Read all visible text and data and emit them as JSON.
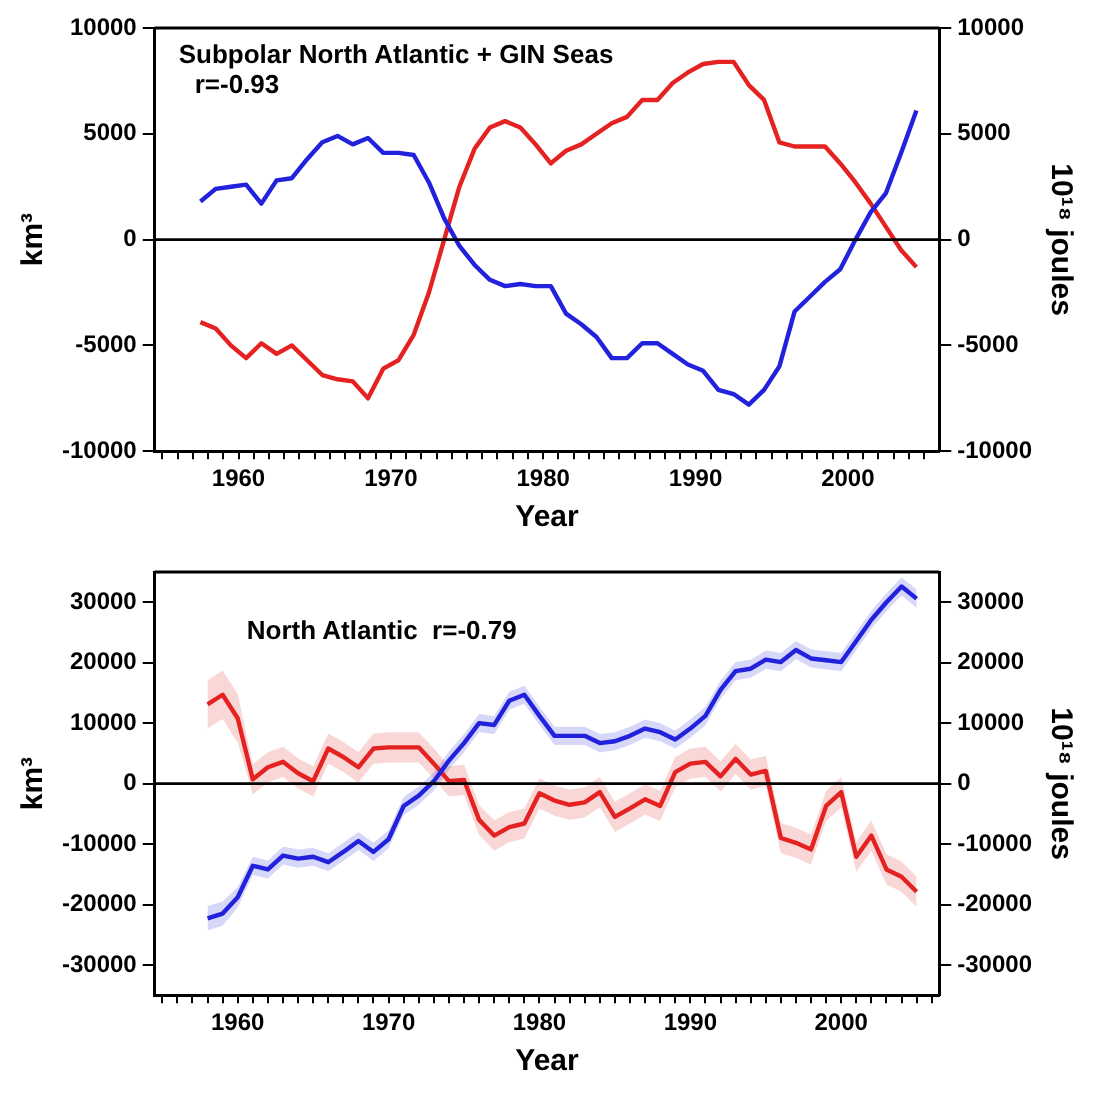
{
  "chart_data": [
    {
      "type": "line",
      "ylabel": "km³",
      "y2label": "10¹⁸ joules",
      "xlabel": "Year",
      "annotations": [
        "Subpolar North Atlantic + GIN Seas",
        "r=-0.93"
      ],
      "xlim": [
        1954.5,
        2006
      ],
      "ylim": [
        -10000,
        10000
      ],
      "y2lim": [
        -10000,
        10000
      ],
      "xticks": [
        {
          "value": 1955,
          "label": null
        },
        {
          "value": 1956,
          "label": null
        },
        {
          "value": 1957,
          "label": null
        },
        {
          "value": 1958,
          "label": null
        },
        {
          "value": 1959,
          "label": null
        },
        1960,
        {
          "value": 1961,
          "label": null
        },
        {
          "value": 1962,
          "label": null
        },
        {
          "value": 1963,
          "label": null
        },
        {
          "value": 1964,
          "label": null
        },
        {
          "value": 1965,
          "label": null
        },
        {
          "value": 1966,
          "label": null
        },
        {
          "value": 1967,
          "label": null
        },
        {
          "value": 1968,
          "label": null
        },
        {
          "value": 1969,
          "label": null
        },
        1970,
        {
          "value": 1971,
          "label": null
        },
        {
          "value": 1972,
          "label": null
        },
        {
          "value": 1973,
          "label": null
        },
        {
          "value": 1974,
          "label": null
        },
        {
          "value": 1975,
          "label": null
        },
        {
          "value": 1976,
          "label": null
        },
        {
          "value": 1977,
          "label": null
        },
        {
          "value": 1978,
          "label": null
        },
        {
          "value": 1979,
          "label": null
        },
        1980,
        {
          "value": 1981,
          "label": null
        },
        {
          "value": 1982,
          "label": null
        },
        {
          "value": 1983,
          "label": null
        },
        {
          "value": 1984,
          "label": null
        },
        {
          "value": 1985,
          "label": null
        },
        {
          "value": 1986,
          "label": null
        },
        {
          "value": 1987,
          "label": null
        },
        {
          "value": 1988,
          "label": null
        },
        {
          "value": 1989,
          "label": null
        },
        1990,
        {
          "value": 1991,
          "label": null
        },
        {
          "value": 1992,
          "label": null
        },
        {
          "value": 1993,
          "label": null
        },
        {
          "value": 1994,
          "label": null
        },
        {
          "value": 1995,
          "label": null
        },
        {
          "value": 1996,
          "label": null
        },
        {
          "value": 1997,
          "label": null
        },
        {
          "value": 1998,
          "label": null
        },
        {
          "value": 1999,
          "label": null
        },
        2000,
        {
          "value": 2001,
          "label": null
        },
        {
          "value": 2002,
          "label": null
        },
        {
          "value": 2003,
          "label": null
        },
        {
          "value": 2004,
          "label": null
        },
        {
          "value": 2005,
          "label": null
        }
      ],
      "yticks": [
        -10000,
        -5000,
        0,
        5000,
        10000
      ],
      "y2ticks": [
        -10000,
        -5000,
        0,
        5000,
        10000
      ],
      "ref_lines": [
        {
          "axis": "y",
          "value": 0,
          "color": "#000000"
        }
      ],
      "x": [
        1957.5,
        1958.5,
        1959.5,
        1960.5,
        1961.5,
        1962.5,
        1963.5,
        1964.5,
        1965.5,
        1966.5,
        1967.5,
        1968.5,
        1969.5,
        1970.5,
        1971.5,
        1972.5,
        1973.5,
        1974.5,
        1975.5,
        1976.5,
        1977.5,
        1978.5,
        1979.5,
        1980.5,
        1981.5,
        1982.5,
        1983.5,
        1984.5,
        1985.5,
        1986.5,
        1987.5,
        1988.5,
        1989.5,
        1990.5,
        1991.5,
        1992.5,
        1993.5,
        1994.5,
        1995.5,
        1996.5,
        1997.5,
        1998.5,
        1999.5,
        2000.5,
        2001.5,
        2002.5,
        2003.5,
        2004.5
      ],
      "series": [
        {
          "color": "#2222dd",
          "values": [
            1800,
            2400,
            2500,
            2600,
            1700,
            2800,
            2900,
            3800,
            4600,
            4900,
            4500,
            4800,
            4100,
            4100,
            4000,
            2700,
            1000,
            -300,
            -1200,
            -1900,
            -2200,
            -2100,
            -2200,
            -2200,
            -3500,
            -4000,
            -4600,
            -5600,
            -5600,
            -4900,
            -4900,
            -5400,
            -5900,
            -6200,
            -7100,
            -7300,
            -7800,
            -7100,
            -6000,
            -3400,
            -2700,
            -2000,
            -1400,
            0,
            1300,
            2200,
            4100,
            6100
          ]
        },
        {
          "color": "#e52222",
          "values": [
            -3900,
            -4200,
            -5000,
            -5600,
            -4900,
            -5400,
            -5000,
            -5700,
            -6400,
            -6600,
            -6700,
            -7500,
            -6100,
            -5700,
            -4500,
            -2500,
            0,
            2500,
            4300,
            5300,
            5600,
            5300,
            4500,
            3600,
            4200,
            4500,
            5000,
            5500,
            5800,
            6600,
            6600,
            7400,
            7900,
            8300,
            8400,
            8400,
            7300,
            6600,
            4600,
            4400,
            4400,
            4400,
            3600,
            2700,
            1700,
            600,
            -500,
            -1300
          ]
        }
      ]
    },
    {
      "type": "line",
      "ylabel": "km³",
      "y2label": "10¹⁸ joules",
      "xlabel": "Year",
      "annotations": [
        "North Atlantic  r=-0.79"
      ],
      "xlim": [
        1954.5,
        2006.5
      ],
      "ylim": [
        -35000,
        35000
      ],
      "y2lim": [
        -35000,
        35000
      ],
      "xticks": [
        {
          "value": 1955,
          "label": null
        },
        {
          "value": 1956,
          "label": null
        },
        {
          "value": 1957,
          "label": null
        },
        {
          "value": 1958,
          "label": null
        },
        {
          "value": 1959,
          "label": null
        },
        1960,
        {
          "value": 1961,
          "label": null
        },
        {
          "value": 1962,
          "label": null
        },
        {
          "value": 1963,
          "label": null
        },
        {
          "value": 1964,
          "label": null
        },
        {
          "value": 1965,
          "label": null
        },
        {
          "value": 1966,
          "label": null
        },
        {
          "value": 1967,
          "label": null
        },
        {
          "value": 1968,
          "label": null
        },
        {
          "value": 1969,
          "label": null
        },
        1970,
        {
          "value": 1971,
          "label": null
        },
        {
          "value": 1972,
          "label": null
        },
        {
          "value": 1973,
          "label": null
        },
        {
          "value": 1974,
          "label": null
        },
        {
          "value": 1975,
          "label": null
        },
        {
          "value": 1976,
          "label": null
        },
        {
          "value": 1977,
          "label": null
        },
        {
          "value": 1978,
          "label": null
        },
        {
          "value": 1979,
          "label": null
        },
        1980,
        {
          "value": 1981,
          "label": null
        },
        {
          "value": 1982,
          "label": null
        },
        {
          "value": 1983,
          "label": null
        },
        {
          "value": 1984,
          "label": null
        },
        {
          "value": 1985,
          "label": null
        },
        {
          "value": 1986,
          "label": null
        },
        {
          "value": 1987,
          "label": null
        },
        {
          "value": 1988,
          "label": null
        },
        {
          "value": 1989,
          "label": null
        },
        1990,
        {
          "value": 1991,
          "label": null
        },
        {
          "value": 1992,
          "label": null
        },
        {
          "value": 1993,
          "label": null
        },
        {
          "value": 1994,
          "label": null
        },
        {
          "value": 1995,
          "label": null
        },
        {
          "value": 1996,
          "label": null
        },
        {
          "value": 1997,
          "label": null
        },
        {
          "value": 1998,
          "label": null
        },
        {
          "value": 1999,
          "label": null
        },
        2000,
        {
          "value": 2001,
          "label": null
        },
        {
          "value": 2002,
          "label": null
        },
        {
          "value": 2003,
          "label": null
        },
        {
          "value": 2004,
          "label": null
        },
        {
          "value": 2005,
          "label": null
        },
        {
          "value": 2006,
          "label": null
        }
      ],
      "yticks": [
        -30000,
        -20000,
        -10000,
        0,
        10000,
        20000,
        30000
      ],
      "y2ticks": [
        -30000,
        -20000,
        -10000,
        0,
        10000,
        20000,
        30000
      ],
      "ref_lines": [
        {
          "axis": "y",
          "value": 0,
          "color": "#000000"
        }
      ],
      "x": [
        1958,
        1959,
        1960,
        1961,
        1962,
        1963,
        1964,
        1965,
        1966,
        1967,
        1968,
        1969,
        1970,
        1971,
        1972,
        1973,
        1974,
        1975,
        1976,
        1977,
        1978,
        1979,
        1980,
        1981,
        1982,
        1983,
        1984,
        1985,
        1986,
        1987,
        1988,
        1989,
        1990,
        1991,
        1992,
        1993,
        1994,
        1995,
        1996,
        1997,
        1998,
        1999,
        2000,
        2001,
        2002,
        2003,
        2004,
        2005
      ],
      "series": [
        {
          "color": "#2222dd",
          "values": [
            -22300,
            -21500,
            -18800,
            -13600,
            -14200,
            -11900,
            -12400,
            -12100,
            -13000,
            -11300,
            -9500,
            -11300,
            -9200,
            -3700,
            -2000,
            400,
            3800,
            6700,
            10000,
            9700,
            13700,
            14700,
            11200,
            7900,
            7900,
            7900,
            6700,
            7000,
            7900,
            9100,
            8500,
            7300,
            9100,
            11200,
            15500,
            18600,
            19000,
            20500,
            20100,
            22100,
            20700,
            20400,
            20100,
            23600,
            27100,
            30000,
            32600,
            30600
          ],
          "lower": [
            -24300,
            -23500,
            -20500,
            -15100,
            -15700,
            -13400,
            -13900,
            -13600,
            -14500,
            -12800,
            -11000,
            -12800,
            -10700,
            -5200,
            -3500,
            -1150,
            2300,
            5200,
            8500,
            8200,
            12200,
            13200,
            9700,
            6400,
            6400,
            6400,
            5200,
            5500,
            6400,
            7600,
            7000,
            5800,
            7600,
            9700,
            14000,
            17100,
            17500,
            19000,
            18600,
            20600,
            19200,
            18900,
            18600,
            22100,
            25600,
            28500,
            31100,
            29100
          ],
          "upper": [
            -20300,
            -19500,
            -17100,
            -12100,
            -12700,
            -10400,
            -10900,
            -10600,
            -11500,
            -9800,
            -8000,
            -9800,
            -7700,
            -2200,
            -500,
            1850,
            5300,
            8200,
            11500,
            11200,
            15200,
            16200,
            12700,
            9400,
            9400,
            9400,
            8200,
            8500,
            9400,
            10600,
            10000,
            8800,
            10600,
            12700,
            17000,
            20100,
            20500,
            22000,
            21600,
            23600,
            22200,
            21900,
            21600,
            25100,
            28600,
            31500,
            34100,
            32100
          ]
        },
        {
          "color": "#e52222",
          "values": [
            13100,
            14700,
            10800,
            700,
            2700,
            3600,
            1700,
            400,
            5800,
            4400,
            2700,
            5800,
            6000,
            6000,
            6000,
            3300,
            400,
            600,
            -6000,
            -8600,
            -7200,
            -6600,
            -1600,
            -2800,
            -3500,
            -3100,
            -1400,
            -5500,
            -4100,
            -2600,
            -3700,
            1900,
            3300,
            3600,
            1200,
            4100,
            1500,
            2100,
            -9000,
            -9800,
            -10900,
            -3700,
            -1400,
            -12100,
            -8600,
            -14200,
            -15400,
            -17900
          ],
          "lower": [
            9100,
            10700,
            6800,
            -1800,
            200,
            1100,
            -800,
            -2150,
            3300,
            1900,
            200,
            3300,
            3500,
            3500,
            3500,
            800,
            -2150,
            -1900,
            -8500,
            -11100,
            -9700,
            -9100,
            -4100,
            -5300,
            -6000,
            -5600,
            -3900,
            -8000,
            -6600,
            -5100,
            -6200,
            -600,
            800,
            1100,
            -1300,
            1600,
            -1000,
            -400,
            -11500,
            -12300,
            -13400,
            -6200,
            -3900,
            -14600,
            -11100,
            -16700,
            -17900,
            -20400
          ],
          "upper": [
            17100,
            18700,
            14800,
            3200,
            5200,
            6100,
            4200,
            2850,
            8300,
            6900,
            5200,
            8300,
            8500,
            8500,
            8500,
            5800,
            2850,
            3100,
            -3500,
            -6100,
            -4700,
            -4100,
            900,
            -300,
            -1000,
            -600,
            1100,
            -3000,
            -1600,
            -100,
            -1200,
            4400,
            5800,
            6100,
            3700,
            6600,
            4000,
            4600,
            -6500,
            -7300,
            -8400,
            -1200,
            1100,
            -9600,
            -6100,
            -11700,
            -12900,
            -15400
          ]
        }
      ]
    }
  ]
}
